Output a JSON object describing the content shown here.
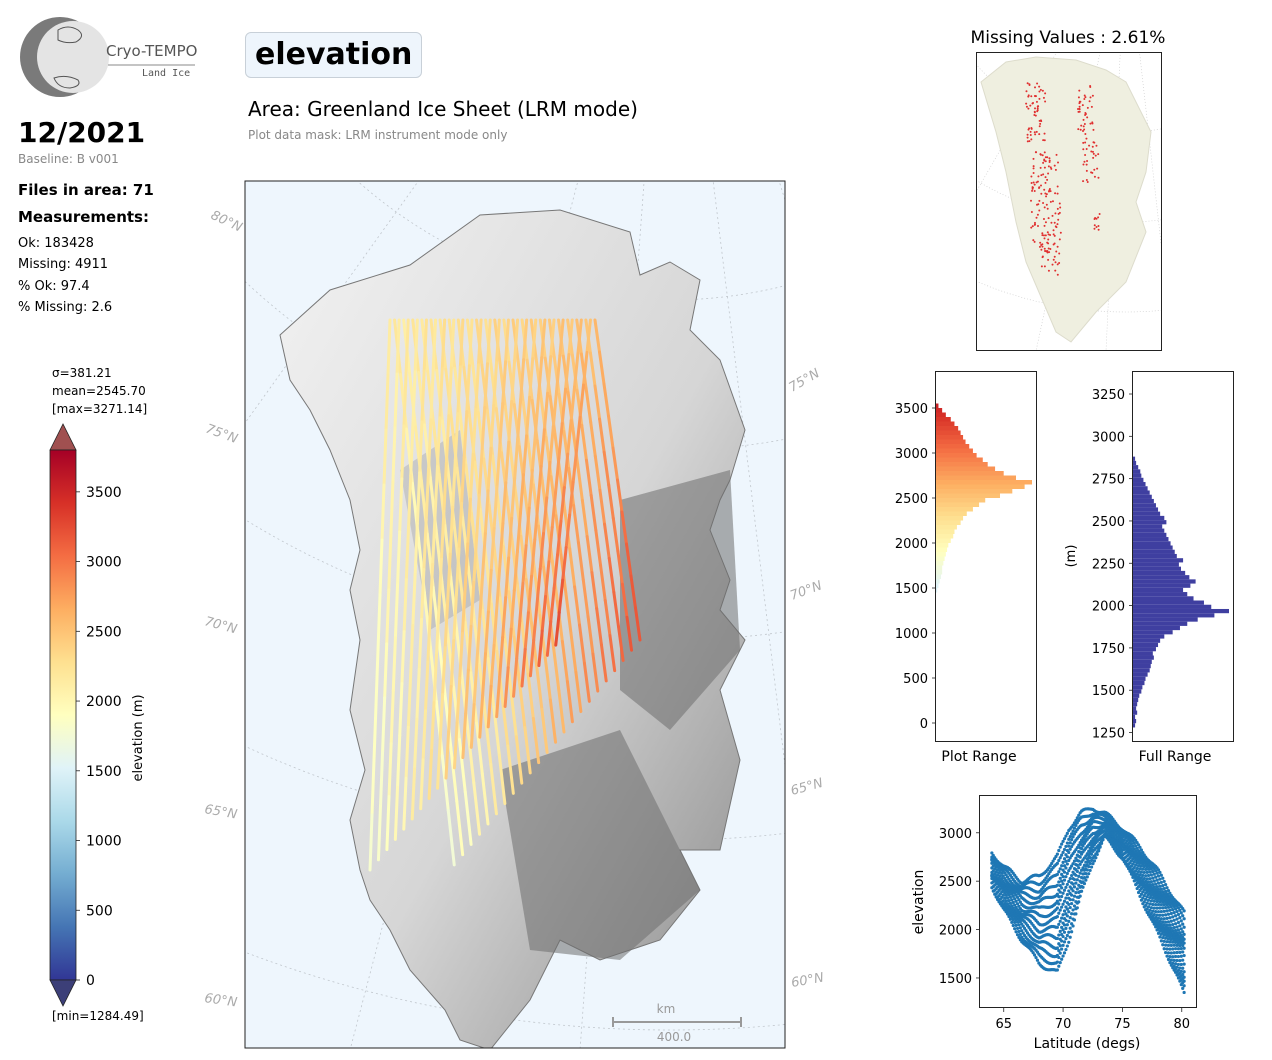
{
  "logo": {
    "name": "Cryo-TEMPO",
    "subtitle": "Land Ice"
  },
  "header": {
    "date": "12/2021",
    "baseline": "Baseline: B v001",
    "files": "Files in area: 71",
    "measurements_title": "Measurements:",
    "ok": "Ok: 183428",
    "missing": "Missing: 4911",
    "pct_ok": "% Ok: 97.4",
    "pct_missing": "% Missing: 2.6"
  },
  "main": {
    "parameter": "elevation",
    "area": "Area: Greenland Ice Sheet (LRM mode)",
    "mask": "Plot data mask: LRM instrument mode only"
  },
  "colorbar": {
    "stats": [
      "σ=381.21",
      "mean=2545.70",
      "[max=3271.14]"
    ],
    "min_label": "[min=1284.49]",
    "label": "elevation (m)",
    "ticks": [
      "0",
      "500",
      "1000",
      "1500",
      "2000",
      "2500",
      "3000",
      "3500"
    ],
    "range": [
      0,
      3800
    ],
    "colors": [
      "#313695",
      "#4575b4",
      "#74add1",
      "#abd9e9",
      "#e0f3f8",
      "#ffffbf",
      "#fee090",
      "#fdae61",
      "#f46d43",
      "#d73027",
      "#a50026"
    ]
  },
  "map": {
    "lat_labels_left": [
      "80°N",
      "75°N",
      "70°N",
      "65°N",
      "60°N"
    ],
    "lat_labels_right": [
      "75°N",
      "70°N",
      "65°N",
      "60°N"
    ],
    "scale_unit": "km",
    "scale_value": "400.0"
  },
  "missing_panel": {
    "title": "Missing Values : 2.61%"
  },
  "histograms": {
    "plot_range": {
      "xlabel": "Plot Range",
      "yticks": [
        "0",
        "500",
        "1000",
        "1500",
        "2000",
        "2500",
        "3000",
        "3500"
      ],
      "ylim": [
        -200,
        3900
      ]
    },
    "full_range": {
      "xlabel": "Full Range",
      "ylabel": "(m)",
      "yticks": [
        "1250",
        "1500",
        "1750",
        "2000",
        "2250",
        "2500",
        "2750",
        "3000",
        "3250"
      ],
      "ylim": [
        1200,
        3380
      ],
      "color": "#3f3fa0"
    }
  },
  "chart_data": [
    {
      "type": "histogram",
      "xlabel": "Plot Range",
      "bin_edges_start": 1450,
      "bin_width": 50,
      "counts": [
        1,
        2,
        3,
        4,
        5,
        5,
        6,
        7,
        8,
        9,
        10,
        12,
        14,
        15,
        17,
        20,
        22,
        25,
        30,
        35,
        40,
        52,
        62,
        72,
        78,
        65,
        55,
        48,
        42,
        38,
        33,
        30,
        27,
        24,
        22,
        20,
        18,
        15,
        12,
        8,
        5,
        2
      ],
      "ylim": [
        -200,
        3900
      ]
    },
    {
      "type": "histogram",
      "xlabel": "Full Range",
      "ylabel": "(m)",
      "bin_edges_start": 1280,
      "bin_width": 25,
      "counts": [
        2,
        3,
        2,
        4,
        3,
        4,
        5,
        6,
        8,
        9,
        11,
        12,
        14,
        16,
        17,
        18,
        20,
        19,
        22,
        24,
        26,
        30,
        38,
        45,
        52,
        62,
        78,
        92,
        75,
        68,
        58,
        52,
        48,
        55,
        60,
        54,
        50,
        46,
        44,
        48,
        42,
        40,
        38,
        36,
        34,
        32,
        30,
        28,
        32,
        30,
        26,
        24,
        22,
        20,
        18,
        16,
        14,
        12,
        10,
        8,
        7,
        5,
        3,
        2
      ],
      "ylim": [
        1200,
        3380
      ]
    },
    {
      "type": "scatter",
      "title": "",
      "xlabel": "Latitude (degs)",
      "ylabel": "elevation",
      "xlim": [
        63,
        81.2
      ],
      "ylim": [
        1200,
        3380
      ],
      "xticks": [
        "65",
        "70",
        "75",
        "80"
      ],
      "yticks": [
        "1500",
        "2000",
        "2500",
        "3000"
      ],
      "color": "#1f77b4",
      "profile": {
        "x": [
          64,
          65,
          66.5,
          68,
          69.5,
          70.5,
          71.5,
          72.5,
          73.5,
          75,
          76.5,
          78,
          79.5,
          80.3
        ],
        "y_upper": [
          2800,
          2650,
          2500,
          2550,
          2750,
          3050,
          3200,
          3260,
          3200,
          3050,
          2850,
          2600,
          2300,
          2150
        ],
        "y_lower": [
          2450,
          2200,
          1900,
          1650,
          1550,
          1900,
          2350,
          2700,
          2950,
          2750,
          2350,
          1950,
          1550,
          1300
        ]
      }
    }
  ]
}
